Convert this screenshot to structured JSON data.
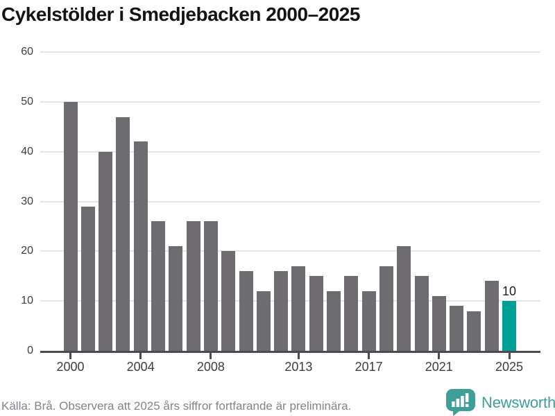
{
  "title": "Cykelstölder i Smedjebacken 2000–2025",
  "footer": {
    "source": "Källa: Brå. Observera att 2025 års siffror fortfarande är preliminära.",
    "logo_text": "Newsworthy"
  },
  "colors": {
    "bar": "#6e6b71",
    "highlight": "#00a096",
    "axis": "#4c4950",
    "grid": "#e6e6e6",
    "title": "#141414",
    "tick_label": "#3d3d3d",
    "source_text": "#82828a",
    "logo": "#3f9e98"
  },
  "chart_data": {
    "type": "bar",
    "title": "Cykelstölder i Smedjebacken 2000–2025",
    "x": [
      2000,
      2001,
      2002,
      2003,
      2004,
      2005,
      2006,
      2007,
      2008,
      2009,
      2010,
      2011,
      2012,
      2013,
      2014,
      2015,
      2016,
      2017,
      2018,
      2019,
      2020,
      2021,
      2022,
      2023,
      2024,
      2025
    ],
    "values": [
      50,
      29,
      40,
      47,
      42,
      26,
      21,
      26,
      26,
      20,
      16,
      12,
      16,
      17,
      15,
      12,
      15,
      12,
      17,
      21,
      15,
      11,
      9,
      8,
      14,
      10
    ],
    "highlight_year": 2025,
    "highlight_label": "10",
    "xticks": [
      2000,
      2004,
      2008,
      2013,
      2017,
      2021,
      2025
    ],
    "yticks": [
      0,
      10,
      20,
      30,
      40,
      50,
      60
    ],
    "ylim": [
      0,
      60
    ],
    "xlabel": "",
    "ylabel": "",
    "grid": "horizontal",
    "legend": "none"
  }
}
